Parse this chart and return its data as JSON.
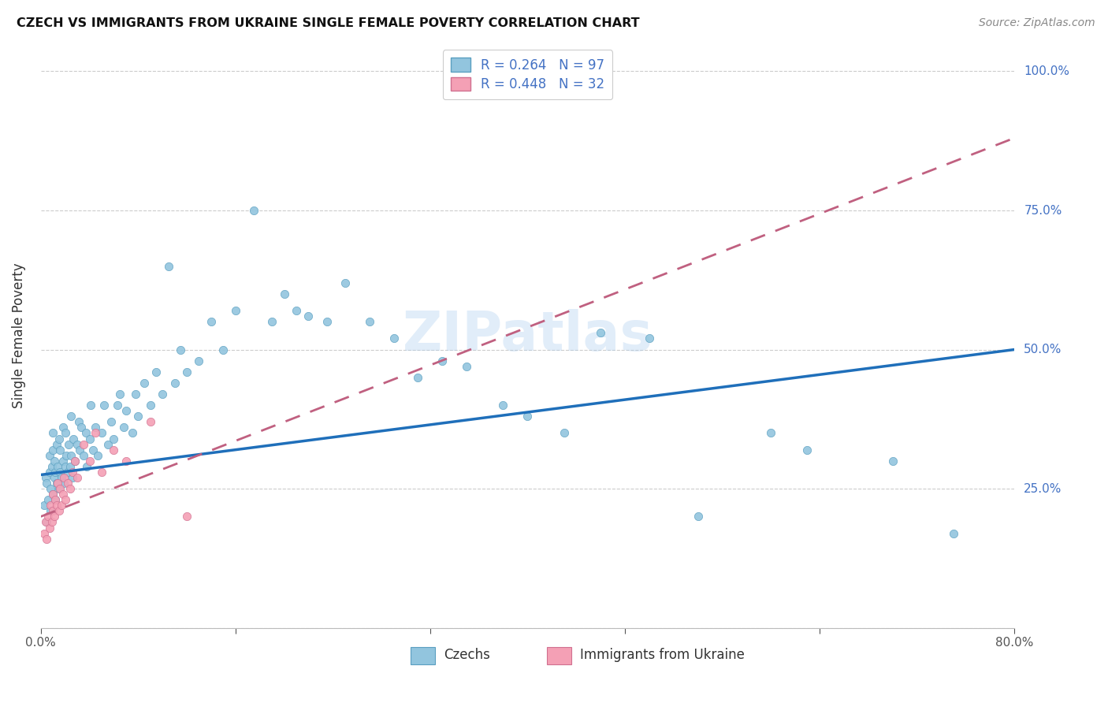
{
  "title": "CZECH VS IMMIGRANTS FROM UKRAINE SINGLE FEMALE POVERTY CORRELATION CHART",
  "source": "Source: ZipAtlas.com",
  "ylabel": "Single Female Poverty",
  "watermark": "ZIPatlas",
  "xlim": [
    0.0,
    0.8
  ],
  "ylim": [
    0.0,
    1.05
  ],
  "xticks": [
    0.0,
    0.16,
    0.32,
    0.48,
    0.64,
    0.8
  ],
  "yticks": [
    0.0,
    0.25,
    0.5,
    0.75,
    1.0
  ],
  "czech_color": "#92c5de",
  "czech_edge": "#5a9fc0",
  "ukraine_color": "#f4a0b5",
  "ukraine_edge": "#d07090",
  "trend1_color": "#1f6fba",
  "trend2_color": "#c06080",
  "czechs_x": [
    0.003,
    0.004,
    0.005,
    0.005,
    0.006,
    0.007,
    0.007,
    0.008,
    0.008,
    0.009,
    0.01,
    0.01,
    0.01,
    0.011,
    0.011,
    0.012,
    0.012,
    0.013,
    0.013,
    0.014,
    0.015,
    0.015,
    0.016,
    0.016,
    0.017,
    0.018,
    0.018,
    0.019,
    0.02,
    0.02,
    0.021,
    0.022,
    0.023,
    0.024,
    0.025,
    0.025,
    0.026,
    0.027,
    0.028,
    0.03,
    0.031,
    0.032,
    0.033,
    0.035,
    0.037,
    0.038,
    0.04,
    0.041,
    0.043,
    0.045,
    0.047,
    0.05,
    0.052,
    0.055,
    0.058,
    0.06,
    0.063,
    0.065,
    0.068,
    0.07,
    0.075,
    0.078,
    0.08,
    0.085,
    0.09,
    0.095,
    0.1,
    0.105,
    0.11,
    0.115,
    0.12,
    0.13,
    0.14,
    0.15,
    0.16,
    0.175,
    0.19,
    0.2,
    0.21,
    0.22,
    0.235,
    0.25,
    0.27,
    0.29,
    0.31,
    0.33,
    0.35,
    0.38,
    0.4,
    0.43,
    0.46,
    0.5,
    0.54,
    0.6,
    0.63,
    0.7,
    0.75
  ],
  "czechs_y": [
    0.22,
    0.27,
    0.19,
    0.26,
    0.23,
    0.28,
    0.31,
    0.21,
    0.25,
    0.29,
    0.24,
    0.32,
    0.35,
    0.27,
    0.3,
    0.23,
    0.28,
    0.26,
    0.33,
    0.29,
    0.25,
    0.34,
    0.28,
    0.32,
    0.27,
    0.3,
    0.36,
    0.26,
    0.29,
    0.35,
    0.31,
    0.28,
    0.33,
    0.29,
    0.31,
    0.38,
    0.27,
    0.34,
    0.3,
    0.33,
    0.37,
    0.32,
    0.36,
    0.31,
    0.35,
    0.29,
    0.34,
    0.4,
    0.32,
    0.36,
    0.31,
    0.35,
    0.4,
    0.33,
    0.37,
    0.34,
    0.4,
    0.42,
    0.36,
    0.39,
    0.35,
    0.42,
    0.38,
    0.44,
    0.4,
    0.46,
    0.42,
    0.65,
    0.44,
    0.5,
    0.46,
    0.48,
    0.55,
    0.5,
    0.57,
    0.75,
    0.55,
    0.6,
    0.57,
    0.56,
    0.55,
    0.62,
    0.55,
    0.52,
    0.45,
    0.48,
    0.47,
    0.4,
    0.38,
    0.35,
    0.53,
    0.52,
    0.2,
    0.35,
    0.32,
    0.3,
    0.17
  ],
  "ukraine_x": [
    0.003,
    0.004,
    0.005,
    0.006,
    0.007,
    0.008,
    0.009,
    0.01,
    0.01,
    0.011,
    0.012,
    0.013,
    0.014,
    0.015,
    0.016,
    0.017,
    0.018,
    0.019,
    0.02,
    0.022,
    0.024,
    0.026,
    0.028,
    0.03,
    0.035,
    0.04,
    0.045,
    0.05,
    0.06,
    0.07,
    0.09,
    0.12
  ],
  "ukraine_y": [
    0.17,
    0.19,
    0.16,
    0.2,
    0.18,
    0.22,
    0.19,
    0.21,
    0.24,
    0.2,
    0.23,
    0.22,
    0.26,
    0.21,
    0.25,
    0.22,
    0.24,
    0.27,
    0.23,
    0.26,
    0.25,
    0.28,
    0.3,
    0.27,
    0.33,
    0.3,
    0.35,
    0.28,
    0.32,
    0.3,
    0.37,
    0.2
  ],
  "czech_trend_x": [
    0.0,
    0.8
  ],
  "czech_trend_y": [
    0.275,
    0.5
  ],
  "ukraine_trend_x": [
    0.0,
    0.8
  ],
  "ukraine_trend_y": [
    0.2,
    0.88
  ]
}
